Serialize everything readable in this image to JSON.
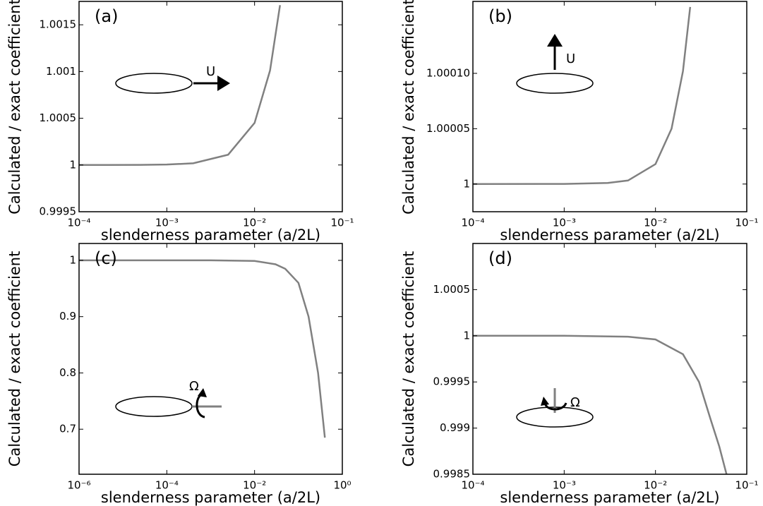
{
  "chart_data": [
    {
      "type": "line",
      "panel_label": "(a)",
      "annotation": "U",
      "ylabel": "Calculated  / exact coefficient",
      "xlabel": "slenderness parameter (a/2L)",
      "xscale": "log",
      "xlim": [
        0.0001,
        0.1
      ],
      "xticks": [
        {
          "value": 0.0001,
          "label": "10⁻⁴"
        },
        {
          "value": 0.001,
          "label": "10⁻³"
        },
        {
          "value": 0.01,
          "label": "10⁻²"
        },
        {
          "value": 0.1,
          "label": "10⁻¹"
        }
      ],
      "ylim": [
        0.9995,
        1.00175
      ],
      "yticks": [
        0.9995,
        1,
        1.0005,
        1.001,
        1.0015
      ],
      "grid": false,
      "series": [
        {
          "color": "#808080",
          "x": [
            0.0001,
            0.0002,
            0.0005,
            0.001,
            0.002,
            0.005,
            0.01,
            0.015,
            0.0195
          ],
          "values": [
            1.0,
            1.0,
            1.000001,
            1.0000045,
            1.000018,
            1.00011,
            1.00045,
            1.00101,
            1.00171
          ]
        }
      ]
    },
    {
      "type": "line",
      "panel_label": "(b)",
      "annotation": "U",
      "ylabel": "Calculated  / exact coefficient",
      "xlabel": "slenderness parameter (a/2L)",
      "xscale": "log",
      "xlim": [
        0.0001,
        0.1
      ],
      "xticks": [
        {
          "value": 0.0001,
          "label": "10⁻⁴"
        },
        {
          "value": 0.001,
          "label": "10⁻³"
        },
        {
          "value": 0.01,
          "label": "10⁻²"
        },
        {
          "value": 0.1,
          "label": "10⁻¹"
        }
      ],
      "ylim": [
        0.999975,
        1.000165
      ],
      "yticks": [
        1,
        1.00005,
        {
          "value": 1.0001,
          "label": "1.00010"
        }
      ],
      "grid": false,
      "series": [
        {
          "color": "#808080",
          "x": [
            0.0001,
            0.001,
            0.003,
            0.005,
            0.01,
            0.015,
            0.02,
            0.024
          ],
          "values": [
            1.0,
            1.0000001,
            1.000001,
            1.0000032,
            1.000018,
            1.00005,
            1.000102,
            1.00016
          ]
        }
      ]
    },
    {
      "type": "line",
      "panel_label": "(c)",
      "annotation": "Ω",
      "ylabel": "Calculated  / exact coefficient",
      "xlabel": "slenderness parameter (a/2L)",
      "xscale": "log",
      "xlim": [
        1e-06,
        1
      ],
      "xticks": [
        {
          "value": 1e-06,
          "label": "10⁻⁶"
        },
        {
          "value": 0.0001,
          "label": "10⁻⁴"
        },
        {
          "value": 0.01,
          "label": "10⁻²"
        },
        {
          "value": 1,
          "label": "10⁰"
        }
      ],
      "ylim": [
        0.62,
        1.03
      ],
      "yticks": [
        0.7,
        0.8,
        0.9,
        1
      ],
      "grid": false,
      "series": [
        {
          "color": "#808080",
          "x": [
            1e-06,
            0.001,
            0.01,
            0.03,
            0.05,
            0.1,
            0.17,
            0.28,
            0.4
          ],
          "values": [
            1.0,
            1.0,
            0.999,
            0.993,
            0.985,
            0.96,
            0.9,
            0.8,
            0.685
          ]
        }
      ]
    },
    {
      "type": "line",
      "panel_label": "(d)",
      "annotation": "Ω",
      "ylabel": "Calculated  / exact coefficient",
      "xlabel": "slenderness parameter (a/2L)",
      "xscale": "log",
      "xlim": [
        0.0001,
        0.1
      ],
      "xticks": [
        {
          "value": 0.0001,
          "label": "10⁻⁴"
        },
        {
          "value": 0.001,
          "label": "10⁻³"
        },
        {
          "value": 0.01,
          "label": "10⁻²"
        },
        {
          "value": 0.1,
          "label": "10⁻¹"
        }
      ],
      "ylim": [
        0.9985,
        1.001
      ],
      "yticks": [
        0.9985,
        0.999,
        0.9995,
        1,
        1.0005
      ],
      "grid": false,
      "series": [
        {
          "color": "#808080",
          "x": [
            0.0001,
            0.001,
            0.005,
            0.01,
            0.02,
            0.03,
            0.04,
            0.05,
            0.06
          ],
          "values": [
            1.0,
            1.0,
            0.99999,
            0.99996,
            0.9998,
            0.9995,
            0.9991,
            0.9988,
            0.9985
          ]
        }
      ]
    }
  ]
}
